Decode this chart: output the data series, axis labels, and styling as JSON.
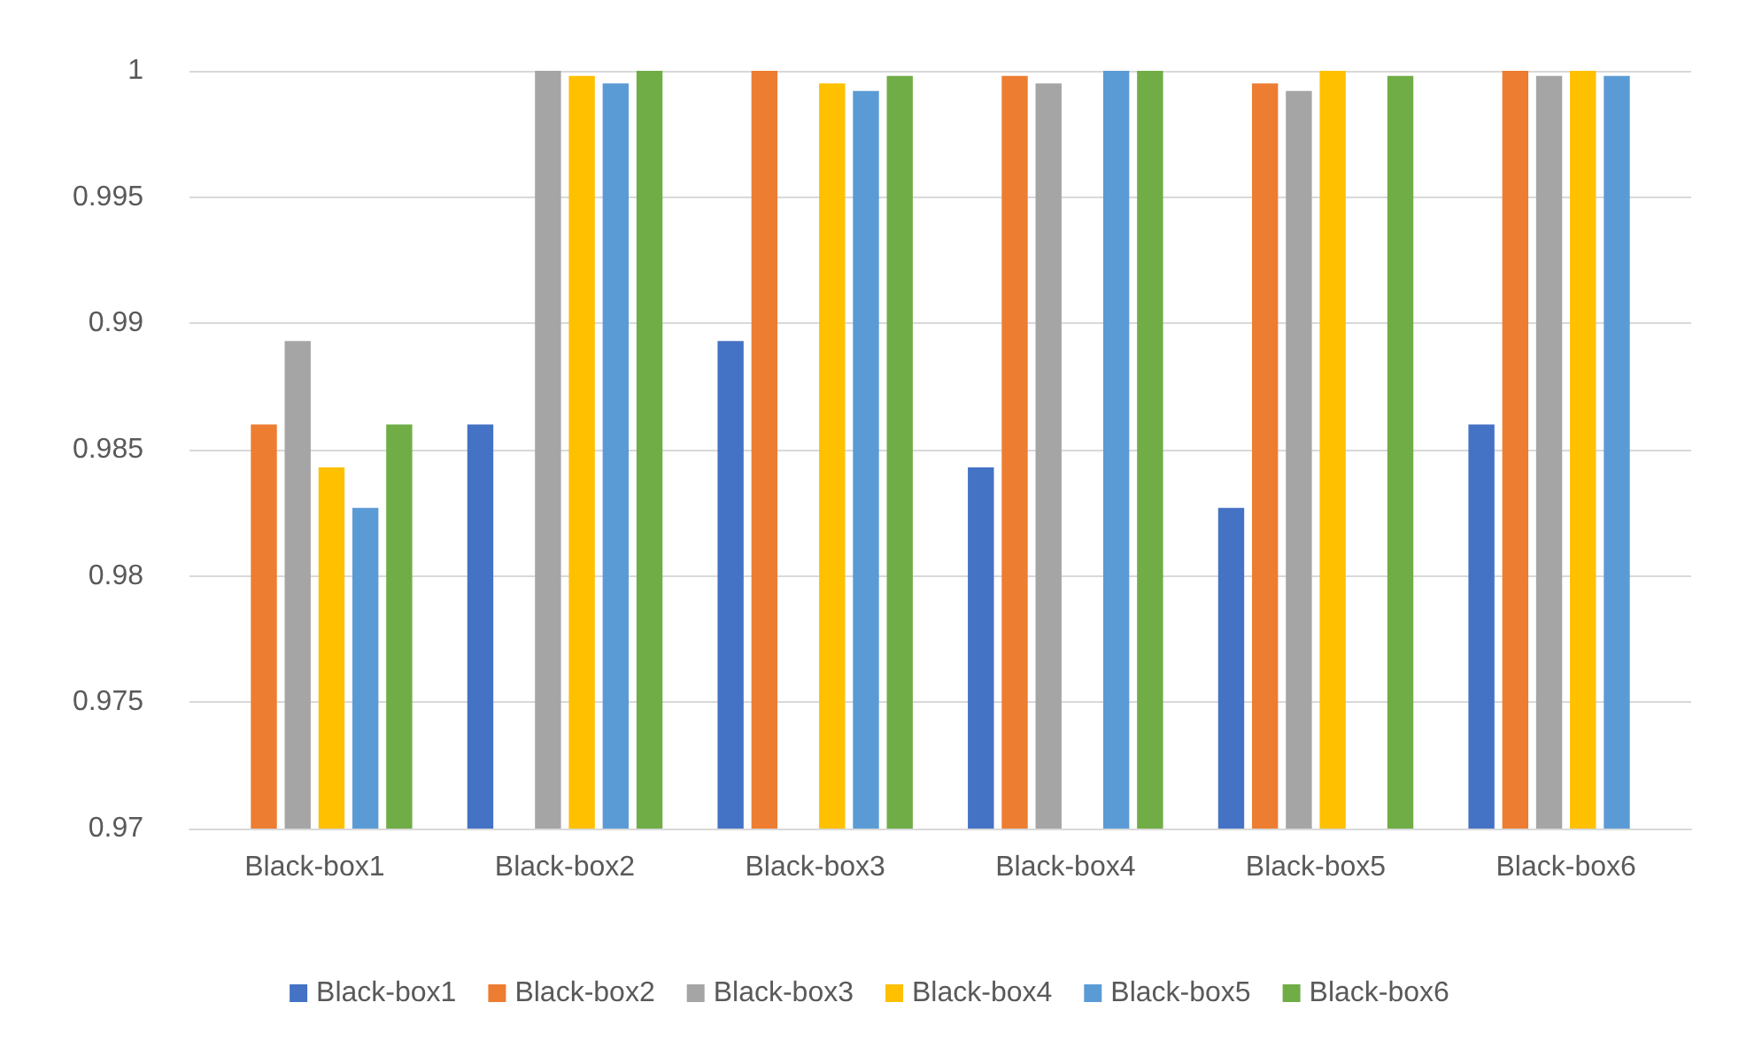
{
  "chart_data": {
    "type": "bar",
    "categories": [
      "Black-box1",
      "Black-box2",
      "Black-box3",
      "Black-box4",
      "Black-box5",
      "Black-box6"
    ],
    "series": [
      {
        "name": "Black-box1",
        "color": "#4472c4",
        "values": [
          null,
          0.986,
          0.9893,
          0.9843,
          0.9827,
          0.986
        ]
      },
      {
        "name": "Black-box2",
        "color": "#ed7d31",
        "values": [
          0.986,
          null,
          1.0,
          0.9998,
          0.9995,
          1.0
        ]
      },
      {
        "name": "Black-box3",
        "color": "#a5a5a5",
        "values": [
          0.9893,
          1.0,
          null,
          0.9995,
          0.9992,
          0.9998
        ]
      },
      {
        "name": "Black-box4",
        "color": "#ffc000",
        "values": [
          0.9843,
          0.9998,
          0.9995,
          null,
          1.0,
          1.0
        ]
      },
      {
        "name": "Black-box5",
        "color": "#5b9bd5",
        "values": [
          0.9827,
          0.9995,
          0.9992,
          1.0,
          null,
          0.9998
        ]
      },
      {
        "name": "Black-box6",
        "color": "#70ad47",
        "values": [
          0.986,
          1.0,
          0.9998,
          1.0,
          0.9998,
          null
        ]
      }
    ],
    "ylim": [
      0.97,
      1
    ],
    "yticks": [
      0.97,
      0.975,
      0.98,
      0.985,
      0.99,
      0.995,
      1
    ],
    "grid": "y",
    "legend": "bottom"
  }
}
